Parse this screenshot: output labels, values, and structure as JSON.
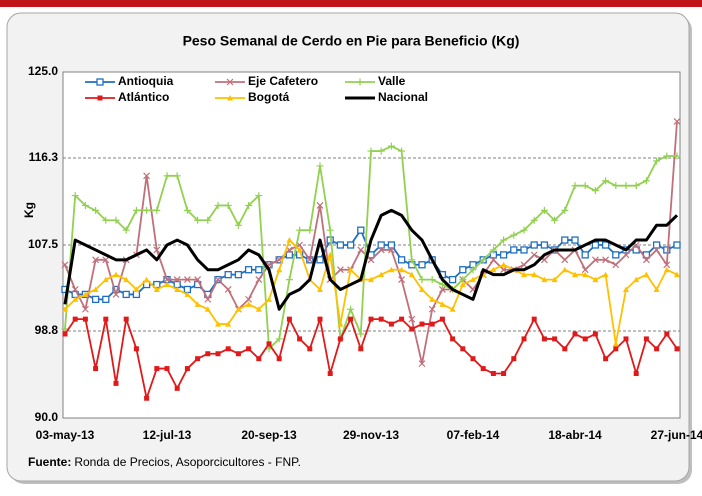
{
  "chart_data": {
    "type": "line",
    "title": "Peso Semanal de Cerdo en Pie para Beneficio (Kg)",
    "y_label": "Kg",
    "source_label": "Fuente:",
    "source": "Ronda de Precios, Asoporcicultores  - FNP.",
    "categories": [
      "03-may-13",
      null,
      null,
      null,
      null,
      null,
      null,
      null,
      null,
      null,
      "12-jul-13",
      null,
      null,
      null,
      null,
      null,
      null,
      null,
      null,
      null,
      "20-sep-13",
      null,
      null,
      null,
      null,
      null,
      null,
      null,
      null,
      null,
      "29-nov-13",
      null,
      null,
      null,
      null,
      null,
      null,
      null,
      null,
      null,
      "07-feb-14",
      null,
      null,
      null,
      null,
      null,
      null,
      null,
      null,
      null,
      "18-abr-14",
      null,
      null,
      null,
      null,
      null,
      null,
      null,
      null,
      null,
      "27-jun-14"
    ],
    "ylim": [
      90,
      125
    ],
    "yticks": [
      {
        "value": 90,
        "label": "90.0"
      },
      98.8,
      107.5,
      116.3,
      {
        "value": 125,
        "label": "125.0"
      }
    ],
    "grid": true,
    "series": [
      {
        "name": "Antioquia",
        "color": "#1f6fc0",
        "marker": "square-open",
        "values": [
          103,
          102.5,
          102.5,
          102,
          102,
          103,
          102.5,
          102.5,
          103.5,
          103.5,
          104,
          103.5,
          103,
          103.5,
          102.5,
          104,
          104.5,
          104.5,
          105,
          105,
          105.5,
          106,
          106.5,
          106.5,
          106,
          106,
          108,
          107.5,
          107.5,
          109,
          106.5,
          107.5,
          107.5,
          106,
          105.5,
          105.5,
          106,
          104.5,
          104,
          105,
          105.5,
          106,
          106.5,
          106.5,
          107,
          107,
          107.5,
          107.5,
          107,
          108,
          108,
          106.5,
          107.5,
          107.5,
          106.5,
          107,
          107,
          106.5,
          107.5,
          107,
          107.5
        ]
      },
      {
        "name": "Eje Cafetero",
        "color": "#c0707a",
        "marker": "x",
        "values": [
          105.5,
          103,
          101,
          106,
          106,
          102.5,
          106,
          106.5,
          114.5,
          107,
          104,
          104,
          104,
          104,
          102,
          104,
          103,
          101,
          102,
          104,
          105.5,
          106,
          107,
          107.5,
          106,
          111.5,
          104,
          105,
          105,
          107,
          106,
          107,
          107,
          104,
          100,
          95.5,
          101,
          103,
          103,
          104,
          103,
          104.5,
          106,
          105,
          105,
          105.5,
          106.5,
          106,
          107,
          106,
          107,
          105,
          106,
          106,
          105.5,
          106.5,
          107.5,
          106,
          107,
          105.5,
          120
        ]
      },
      {
        "name": "Valle",
        "color": "#92d050",
        "marker": "plus",
        "values": [
          99,
          112.5,
          111.5,
          111,
          110,
          110,
          109,
          111,
          111,
          111,
          114.5,
          114.5,
          111,
          110,
          110,
          111.5,
          111.5,
          109.5,
          111.5,
          112.5,
          97,
          98,
          104,
          109,
          109,
          115.5,
          109,
          98,
          101,
          98.5,
          117,
          117,
          117.5,
          117,
          106,
          104,
          104,
          103.5,
          103,
          104,
          105,
          106,
          107,
          108,
          108.5,
          109,
          110,
          111,
          110,
          111,
          113.5,
          113.5,
          113,
          114,
          113.5,
          113.5,
          113.5,
          114,
          116,
          116.5,
          116.5
        ]
      },
      {
        "name": "Atlántico",
        "color": "#e01a1a",
        "marker": "square",
        "values": [
          98.5,
          100,
          100,
          95,
          100,
          93.5,
          100,
          97,
          92,
          95,
          95,
          93,
          95,
          96,
          96.5,
          96.5,
          97,
          96.5,
          97,
          96,
          97.5,
          96,
          100,
          98,
          97,
          100,
          94.5,
          98,
          100,
          97,
          100,
          100,
          99.5,
          100,
          99,
          99.5,
          99.5,
          100,
          98,
          97,
          96,
          95,
          94.5,
          94.5,
          96,
          98,
          100,
          98,
          98,
          97,
          98.5,
          98,
          98.5,
          96,
          97,
          98,
          94.5,
          98,
          97,
          98.5,
          97
        ]
      },
      {
        "name": "Bogotá",
        "color": "#ffc000",
        "marker": "triangle",
        "values": [
          101,
          102,
          102.5,
          103,
          104,
          104.5,
          104,
          103,
          104,
          103,
          103.5,
          103,
          102.5,
          101.5,
          101,
          99.5,
          99.5,
          101,
          101.5,
          101,
          102,
          105,
          108,
          107,
          104,
          103,
          106.5,
          99.5,
          105,
          104,
          104,
          104.5,
          105,
          105,
          104.5,
          103,
          102,
          101.5,
          101,
          103.5,
          104,
          104.5,
          105,
          105.5,
          105,
          104.5,
          104.5,
          104,
          104,
          105,
          104.5,
          104.5,
          104,
          104.5,
          97.5,
          103,
          104,
          104.5,
          103,
          105,
          104.5
        ]
      },
      {
        "name": "Nacional",
        "color": "#000000",
        "marker": "none",
        "values": [
          101.5,
          108,
          107.5,
          107,
          106.5,
          106,
          106,
          106.5,
          107,
          106,
          107.5,
          108,
          107.5,
          106,
          105,
          105,
          105.5,
          106,
          107,
          106.5,
          105,
          101,
          102.5,
          103,
          104,
          108,
          104,
          103,
          103.5,
          104,
          108,
          110.5,
          111,
          110.5,
          109,
          108,
          106,
          104,
          103,
          102.5,
          102,
          105,
          104.5,
          104.5,
          105,
          105,
          105.5,
          106.5,
          107,
          107,
          107,
          107.5,
          108,
          108,
          107.5,
          107,
          108,
          108,
          109.5,
          109.5,
          110.5
        ]
      }
    ]
  }
}
